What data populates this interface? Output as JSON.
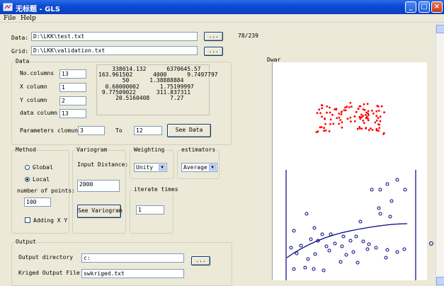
{
  "window": {
    "title": "无标题 - GLS",
    "minimize": "_",
    "maximize": "□",
    "close": "×"
  },
  "menu": {
    "file": "File",
    "help": "Help"
  },
  "data_label": "Data:",
  "data_path": "D:\\LKK\\test.txt",
  "grid_label": "Grid:",
  "grid_path": "D:\\LKK\\validation.txt",
  "browse": "...",
  "counter": "78/239",
  "data_group": {
    "title": "Data",
    "no_columns_label": "No.columns",
    "no_columns": "13",
    "x_column_label": "X column",
    "x_column": "1",
    "y_column_label": "Y column",
    "y_column": "2",
    "data_column_label": "data column",
    "data_column": "13",
    "preview_lines": [
      "    338014.132      6370645.57",
      "163.961502      4000      9.7497797",
      "       50      1.38888884",
      "  0.60000002      1.75199997",
      " 9.77509022      311.837311",
      "     20.5160408      7.27"
    ],
    "param_label": "Parameters clomuns",
    "param_from": "3",
    "to_label": "To",
    "param_to": "12",
    "see_data": "See Data"
  },
  "method": {
    "title": "Method",
    "global": "Global",
    "local": "Local",
    "num_points_label": "number of points:",
    "num_points": "100",
    "adding_xy": "Adding X Y"
  },
  "variogram": {
    "title": "Variogram",
    "input_distance_label": "Input Distance:",
    "input_distance": "2000",
    "see_variogram": "See Variogram"
  },
  "weighting": {
    "title": "Weighting",
    "value": "Unity"
  },
  "estimators": {
    "title": "estimators",
    "value": "Average"
  },
  "iterate": {
    "title": "iterate times",
    "value": "1"
  },
  "output": {
    "title": "Output",
    "dir_label": "Output directory",
    "dir_value": "c:",
    "kriged_label": "Kriged Output File",
    "kriged_value": "swkriged.txt"
  },
  "plot": {
    "title": "Dwar"
  },
  "colors": {
    "red_points": "#ff0000",
    "blue_points": "#000080",
    "curve": "#000080"
  }
}
